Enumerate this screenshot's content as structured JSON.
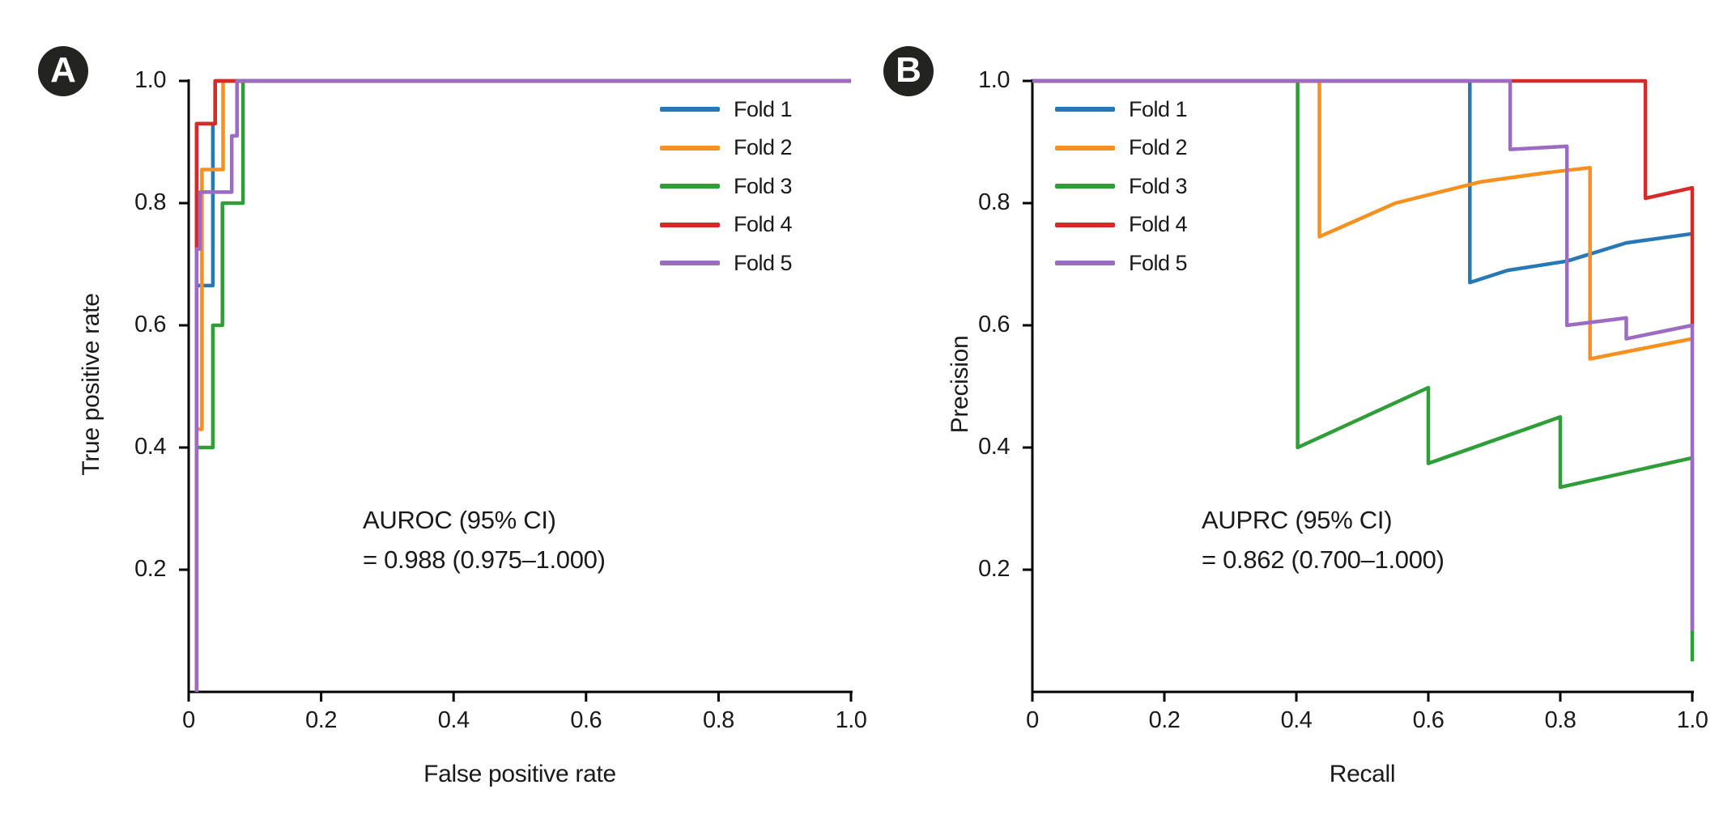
{
  "figure": {
    "background": "#ffffff",
    "text_color": "#1a1a1a",
    "axis_color": "#000000",
    "badge_bg": "#232321",
    "badge_fg": "#ffffff"
  },
  "chart_data": [
    {
      "type": "line",
      "panel_badge": "A",
      "xlabel": "False positive rate",
      "ylabel": "True positive rate",
      "xlim": [
        0,
        1
      ],
      "ylim": [
        0,
        1
      ],
      "grid": false,
      "legend_position": "top-right",
      "x_tick_values": [
        0,
        0.2,
        0.4,
        0.6,
        0.8,
        1.0
      ],
      "x_tick_labels": [
        "0",
        "0.2",
        "0.4",
        "0.6",
        "0.8",
        "1.0"
      ],
      "y_tick_values": [
        1.0,
        0.8,
        0.6,
        0.4,
        0.2
      ],
      "y_tick_labels": [
        "1.0",
        "0.8",
        "0.6",
        "0.4",
        "0.2"
      ],
      "annotation": [
        "AUROC (95% CI)",
        "= 0.988 (0.975–1.000)"
      ],
      "series": [
        {
          "name": "Fold 1",
          "color": "#2878b5",
          "points": [
            [
              0.012,
              0
            ],
            [
              0.012,
              0.665
            ],
            [
              0.0365,
              0.665
            ],
            [
              0.0365,
              0.93
            ],
            [
              0.04,
              0.93
            ],
            [
              0.04,
              1
            ],
            [
              1,
              1
            ]
          ]
        },
        {
          "name": "Fold 2",
          "color": "#f7901e",
          "points": [
            [
              0.012,
              0
            ],
            [
              0.012,
              0.43
            ],
            [
              0.02,
              0.43
            ],
            [
              0.02,
              0.855
            ],
            [
              0.052,
              0.855
            ],
            [
              0.052,
              1
            ],
            [
              1,
              1
            ]
          ]
        },
        {
          "name": "Fold 3",
          "color": "#2f9e38",
          "points": [
            [
              0.012,
              0
            ],
            [
              0.012,
              0.4
            ],
            [
              0.0365,
              0.4
            ],
            [
              0.0365,
              0.6
            ],
            [
              0.051,
              0.6
            ],
            [
              0.051,
              0.8
            ],
            [
              0.082,
              0.8
            ],
            [
              0.082,
              1
            ],
            [
              1,
              1
            ]
          ]
        },
        {
          "name": "Fold 4",
          "color": "#d62a28",
          "points": [
            [
              0.012,
              0
            ],
            [
              0.012,
              0.93
            ],
            [
              0.04,
              0.93
            ],
            [
              0.04,
              1
            ],
            [
              1,
              1
            ]
          ]
        },
        {
          "name": "Fold 5",
          "color": "#9c6bc3",
          "points": [
            [
              0.012,
              0
            ],
            [
              0.012,
              0.725
            ],
            [
              0.017,
              0.725
            ],
            [
              0.017,
              0.818
            ],
            [
              0.065,
              0.818
            ],
            [
              0.065,
              0.91
            ],
            [
              0.073,
              0.91
            ],
            [
              0.073,
              1
            ],
            [
              1,
              1
            ]
          ]
        }
      ]
    },
    {
      "type": "line",
      "panel_badge": "B",
      "xlabel": "Recall",
      "ylabel": "Precision",
      "xlim": [
        0,
        1
      ],
      "ylim": [
        0,
        1
      ],
      "grid": false,
      "legend_position": "top-left",
      "x_tick_values": [
        0,
        0.2,
        0.4,
        0.6,
        0.8,
        1.0
      ],
      "x_tick_labels": [
        "0",
        "0.2",
        "0.4",
        "0.6",
        "0.8",
        "1.0"
      ],
      "y_tick_values": [
        1.0,
        0.8,
        0.6,
        0.4,
        0.2
      ],
      "y_tick_labels": [
        "1.0",
        "0.8",
        "0.6",
        "0.4",
        "0.2"
      ],
      "annotation": [
        "AUPRC (95% CI)",
        "= 0.862 (0.700–1.000)"
      ],
      "series": [
        {
          "name": "Fold 1",
          "color": "#2878b5",
          "points": [
            [
              0,
              1
            ],
            [
              0.663,
              1
            ],
            [
              0.663,
              0.67
            ],
            [
              0.72,
              0.69
            ],
            [
              0.81,
              0.705
            ],
            [
              0.9,
              0.735
            ],
            [
              1,
              0.75
            ]
          ]
        },
        {
          "name": "Fold 2",
          "color": "#f7901e",
          "points": [
            [
              0,
              1
            ],
            [
              0.435,
              1
            ],
            [
              0.435,
              0.745
            ],
            [
              0.55,
              0.8
            ],
            [
              0.68,
              0.835
            ],
            [
              0.78,
              0.85
            ],
            [
              0.845,
              0.858
            ],
            [
              0.845,
              0.545
            ],
            [
              1,
              0.578
            ]
          ]
        },
        {
          "name": "Fold 3",
          "color": "#2f9e38",
          "points": [
            [
              0,
              1
            ],
            [
              0.402,
              1
            ],
            [
              0.402,
              0.4
            ],
            [
              0.6,
              0.498
            ],
            [
              0.6,
              0.374
            ],
            [
              0.8,
              0.45
            ],
            [
              0.8,
              0.335
            ],
            [
              1,
              0.383
            ],
            [
              1,
              0.05
            ]
          ]
        },
        {
          "name": "Fold 4",
          "color": "#d62a28",
          "points": [
            [
              0,
              1
            ],
            [
              0.929,
              1
            ],
            [
              0.929,
              0.808
            ],
            [
              1,
              0.825
            ],
            [
              1,
              0.6
            ]
          ]
        },
        {
          "name": "Fold 5",
          "color": "#9c6bc3",
          "points": [
            [
              0,
              1
            ],
            [
              0.724,
              1
            ],
            [
              0.724,
              0.888
            ],
            [
              0.81,
              0.893
            ],
            [
              0.81,
              0.6
            ],
            [
              0.9,
              0.612
            ],
            [
              0.9,
              0.578
            ],
            [
              1,
              0.6
            ],
            [
              1,
              0.1
            ]
          ]
        }
      ]
    }
  ]
}
